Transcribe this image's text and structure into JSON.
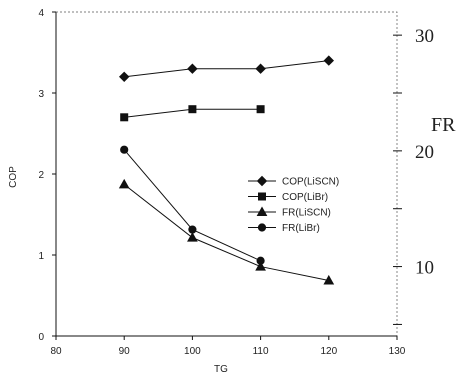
{
  "chart_data": {
    "type": "line",
    "title": "",
    "xlabel": "TG",
    "ylabel": "COP",
    "y2label": "FR",
    "xlim": [
      80,
      130
    ],
    "ylim": [
      0,
      4
    ],
    "y2lim": [
      4,
      32
    ],
    "xticks": [
      "80",
      "90",
      "100",
      "110",
      "120",
      "130"
    ],
    "yticks": [
      "0",
      "1",
      "2",
      "3",
      "4"
    ],
    "y2ticks": [
      "10",
      "20",
      "30"
    ],
    "grid": false,
    "legend_position": "center-right",
    "series": [
      {
        "name": "COP(LiSCN)",
        "axis": "left",
        "marker": "diamond",
        "x": [
          90,
          100,
          110,
          120
        ],
        "y": [
          3.2,
          3.3,
          3.3,
          3.4
        ]
      },
      {
        "name": "COP(LiBr)",
        "axis": "left",
        "marker": "square",
        "x": [
          90,
          100,
          110
        ],
        "y": [
          2.7,
          2.8,
          2.8
        ]
      },
      {
        "name": "FR(LiSCN)",
        "axis": "right",
        "marker": "triangle",
        "x": [
          90,
          100,
          110,
          120
        ],
        "y": [
          17.1,
          12.5,
          10.0,
          8.8
        ]
      },
      {
        "name": "FR(LiBr)",
        "axis": "right",
        "marker": "circle",
        "x": [
          90,
          100,
          110
        ],
        "y": [
          20.1,
          13.2,
          10.5
        ]
      }
    ]
  }
}
